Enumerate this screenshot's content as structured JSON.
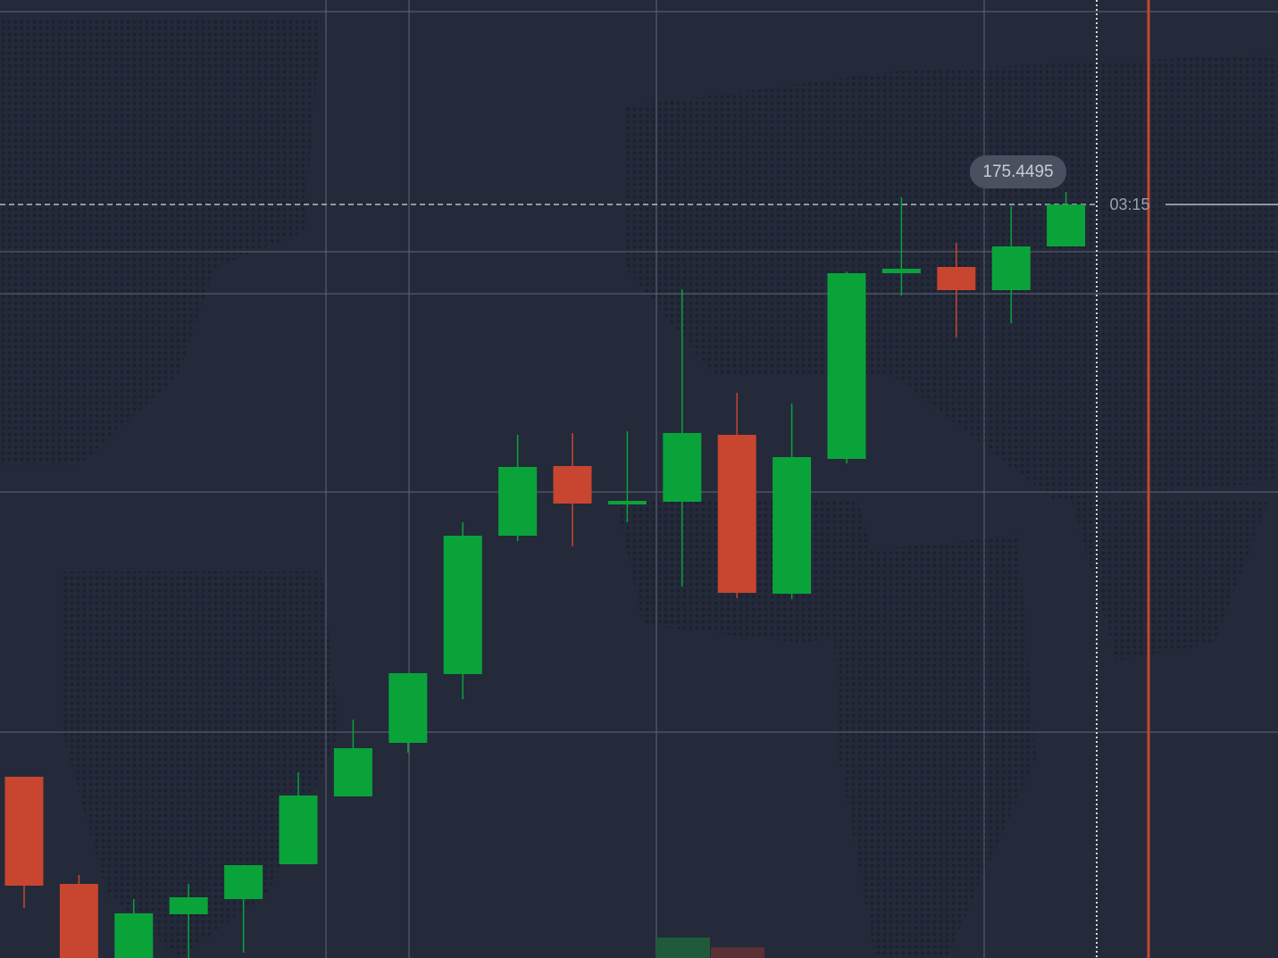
{
  "chart_data": {
    "type": "candlestick",
    "ylim": [
      175.3651,
      175.4724
    ],
    "up_color": "#0aa33a",
    "down_color": "#c8452f",
    "open": [
      175.3854,
      175.3734,
      175.3651,
      175.37,
      175.3717,
      175.3756,
      175.3832,
      175.3892,
      175.3969,
      175.4124,
      175.4202,
      175.4159,
      175.4162,
      175.4237,
      175.4059,
      175.421,
      175.4418,
      175.4425,
      175.4399,
      175.4448
    ],
    "high": [
      175.3854,
      175.3744,
      175.3717,
      175.3734,
      175.3755,
      175.3859,
      175.3918,
      175.397,
      175.4139,
      175.4237,
      175.4239,
      175.4241,
      175.44,
      175.4284,
      175.4272,
      175.442,
      175.4503,
      175.4452,
      175.4493,
      175.4509
    ],
    "low": [
      175.3707,
      175.3651,
      175.3651,
      175.3651,
      175.3657,
      175.3756,
      175.3832,
      175.3881,
      175.3941,
      175.4118,
      175.4112,
      175.4139,
      175.4067,
      175.4054,
      175.4053,
      175.4205,
      175.4393,
      175.4346,
      175.4362,
      175.4448
    ],
    "close": [
      175.3732,
      175.3651,
      175.3701,
      175.3719,
      175.3755,
      175.3833,
      175.3886,
      175.397,
      175.4124,
      175.4201,
      175.416,
      175.4163,
      175.4239,
      175.406,
      175.4212,
      175.4418,
      175.4423,
      175.4399,
      175.4448,
      175.4495
    ],
    "current_price": 175.4495,
    "timer": "03:15"
  }
}
